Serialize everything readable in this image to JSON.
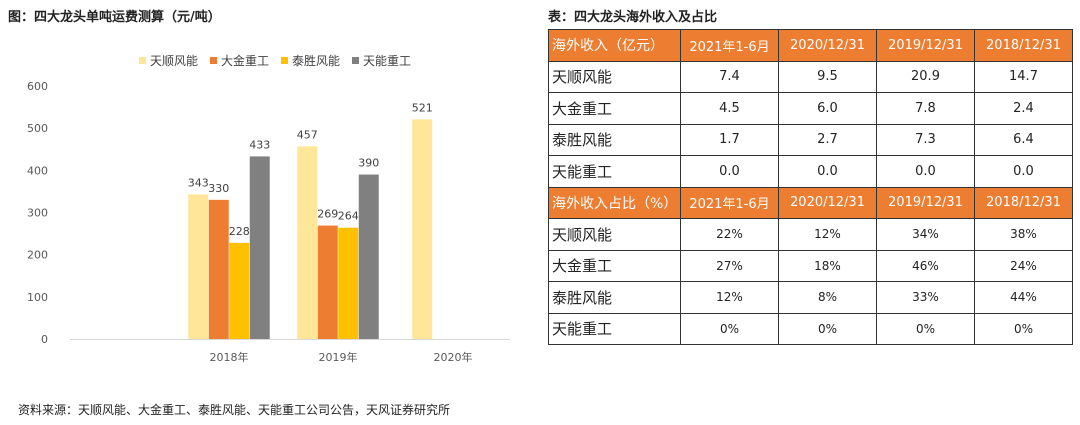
{
  "chart_title": "图：四大龙头单吨运费测算（元/吨）",
  "table_title": "表：四大龙头海外收入及占比",
  "source": "资料来源：天顺风能、大金重工、泰胜风能、天能重工公司公告，天风证券研究所",
  "chart_data": {
    "type": "bar",
    "categories": [
      "2018年",
      "2019年",
      "2020年"
    ],
    "series": [
      {
        "name": "天顺风能",
        "color": "#FFE699",
        "values": [
          343,
          457,
          521
        ]
      },
      {
        "name": "大金重工",
        "color": "#ED7D31",
        "values": [
          330,
          269,
          null
        ]
      },
      {
        "name": "泰胜风能",
        "color": "#FFC000",
        "values": [
          228,
          264,
          null
        ]
      },
      {
        "name": "天能重工",
        "color": "#808080",
        "values": [
          433,
          390,
          null
        ]
      }
    ],
    "ylim": [
      0,
      600
    ],
    "yticks": [
      "0",
      "100",
      "200",
      "300",
      "400",
      "500",
      "600"
    ],
    "legend_position": "top",
    "grid": false
  },
  "table": {
    "rows": [
      [
        "海外收入（亿元）",
        "2021年1-6月",
        "2020/12/31",
        "2019/12/31",
        "2018/12/31"
      ],
      [
        "天顺风能",
        "7.4",
        "9.5",
        "20.9",
        "14.7"
      ],
      [
        "大金重工",
        "4.5",
        "6.0",
        "7.8",
        "2.4"
      ],
      [
        "泰胜风能",
        "1.7",
        "2.7",
        "7.3",
        "6.4"
      ],
      [
        "天能重工",
        "0.0",
        "0.0",
        "0.0",
        "0.0"
      ],
      [
        "海外收入占比（%）",
        "2021年1-6月",
        "2020/12/31",
        "2019/12/31",
        "2018/12/31"
      ],
      [
        "天顺风能",
        "22%",
        "12%",
        "34%",
        "38%"
      ],
      [
        "大金重工",
        "27%",
        "18%",
        "46%",
        "24%"
      ],
      [
        "泰胜风能",
        "12%",
        "8%",
        "33%",
        "44%"
      ],
      [
        "天能重工",
        "0%",
        "0%",
        "0%",
        "0%"
      ]
    ]
  },
  "colors": {
    "header_bg": "#ED7D31",
    "header_text": "#FFFFFF"
  }
}
